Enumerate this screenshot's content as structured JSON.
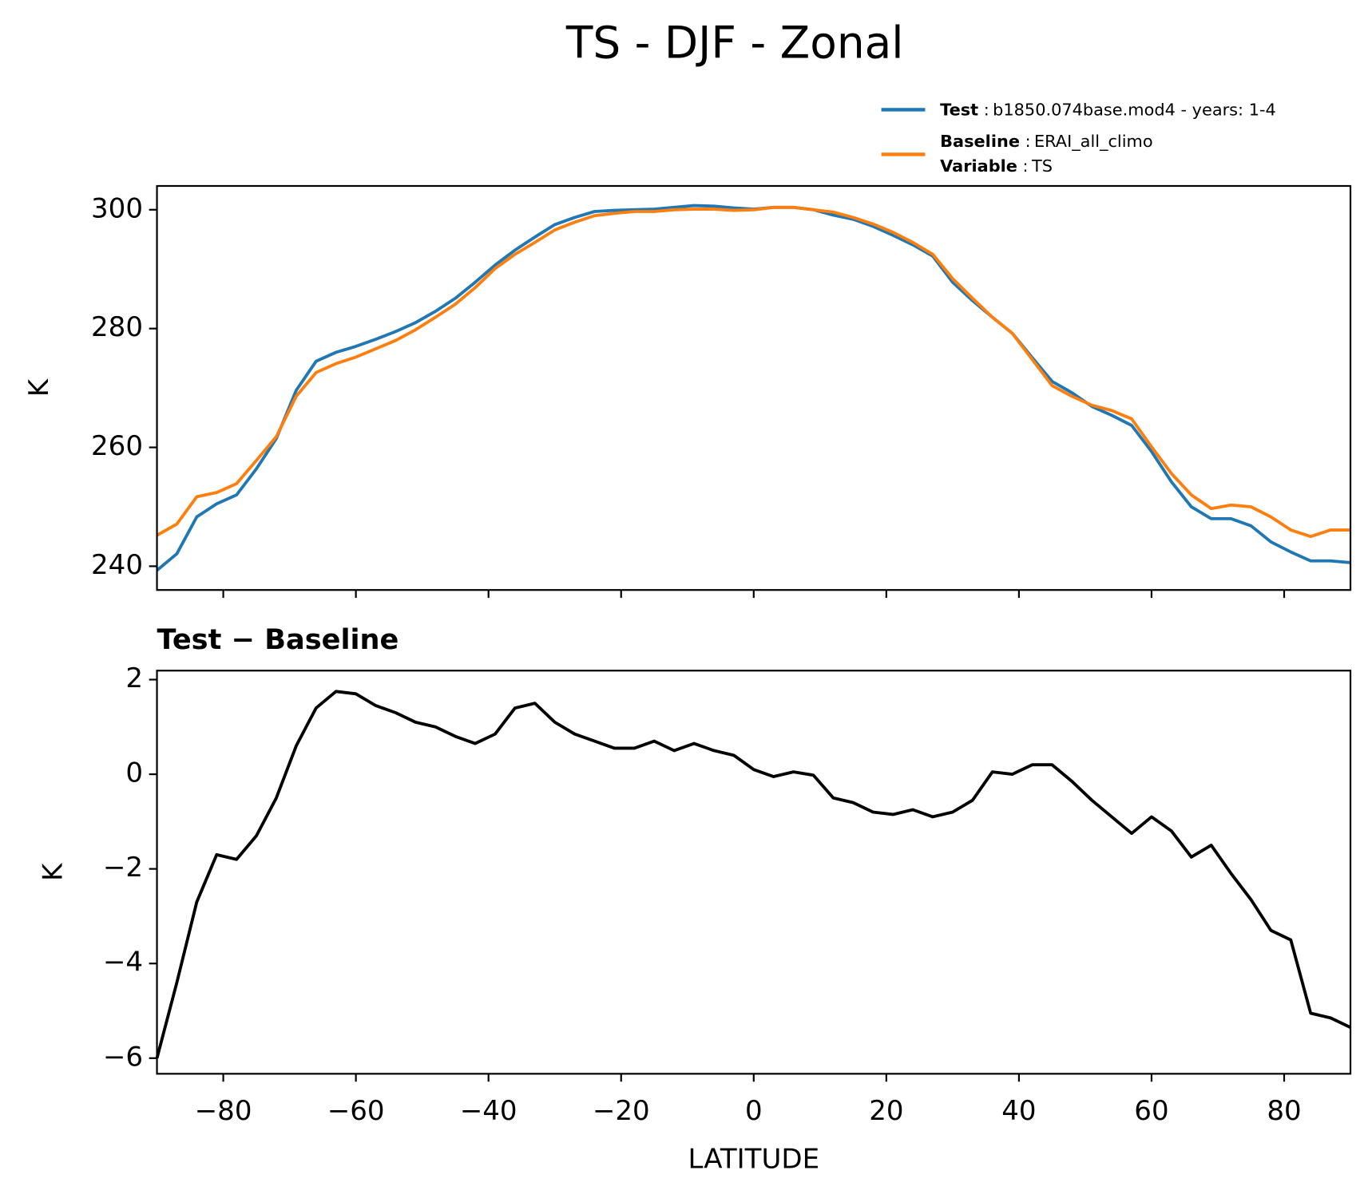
{
  "title": "TS - DJF - Zonal",
  "chart_data": [
    {
      "type": "line",
      "ylabel": "K",
      "x": [
        -90,
        -87,
        -84,
        -81,
        -78,
        -75,
        -72,
        -69,
        -66,
        -63,
        -60,
        -57,
        -54,
        -51,
        -48,
        -45,
        -42,
        -39,
        -36,
        -33,
        -30,
        -27,
        -24,
        -21,
        -18,
        -15,
        -12,
        -9,
        -6,
        -3,
        0,
        3,
        6,
        9,
        12,
        15,
        18,
        21,
        24,
        27,
        30,
        33,
        36,
        39,
        42,
        45,
        48,
        51,
        54,
        57,
        60,
        63,
        66,
        69,
        72,
        75,
        78,
        81,
        84,
        87,
        90
      ],
      "series": [
        {
          "name": "Test",
          "separator": ":",
          "description": "b1850.074base.mod4 - years: 1-4",
          "color": "#1f77b4",
          "values": [
            239.3,
            242.1,
            248.3,
            250.5,
            252.0,
            256.4,
            261.5,
            269.6,
            274.5,
            276.0,
            277.0,
            278.2,
            279.5,
            281.0,
            282.9,
            285.1,
            287.8,
            290.7,
            293.2,
            295.4,
            297.5,
            298.7,
            299.7,
            299.9,
            300.0,
            300.1,
            300.4,
            300.7,
            300.6,
            300.3,
            300.1,
            300.4,
            300.4,
            300.0,
            299.1,
            298.4,
            297.2,
            295.7,
            294.1,
            292.2,
            287.8,
            284.7,
            281.9,
            279.2,
            275.1,
            271.1,
            269.2,
            266.9,
            265.4,
            263.7,
            259.3,
            254.2,
            250.0,
            248.0,
            248.0,
            246.8,
            244.1,
            242.4,
            240.9,
            240.9,
            240.6
          ]
        },
        {
          "name": "Baseline",
          "separator": ":",
          "description": "ERAI_all_climo",
          "extra_name": "Variable",
          "extra_description": "TS",
          "color": "#ff7f0e",
          "values": [
            245.2,
            247.1,
            251.7,
            252.4,
            253.9,
            257.8,
            261.8,
            268.6,
            272.6,
            274.1,
            275.2,
            276.6,
            278.0,
            279.8,
            281.9,
            284.1,
            286.9,
            290.1,
            292.5,
            294.5,
            296.6,
            297.9,
            299.0,
            299.4,
            299.7,
            299.7,
            300.0,
            300.1,
            300.1,
            299.9,
            300.0,
            300.4,
            300.4,
            300.0,
            299.6,
            298.7,
            297.6,
            296.2,
            294.5,
            292.5,
            288.4,
            285.1,
            281.9,
            279.2,
            274.8,
            270.4,
            268.6,
            267.1,
            266.2,
            264.8,
            260.1,
            255.6,
            252.0,
            249.7,
            250.3,
            250.0,
            248.3,
            246.1,
            245.0,
            246.1,
            246.1
          ]
        }
      ],
      "xlim": [
        -90,
        90
      ],
      "xticks": [
        -80,
        -60,
        -40,
        -20,
        0,
        20,
        40,
        60,
        80
      ],
      "show_xticklabels": false,
      "ylim": [
        236,
        304
      ],
      "yticks": [
        240,
        260,
        280,
        300
      ]
    },
    {
      "type": "line",
      "title": "Test − Baseline",
      "ylabel": "K",
      "xlabel": "LATITUDE",
      "color": "#000000",
      "x": [
        -90,
        -87,
        -84,
        -81,
        -78,
        -75,
        -72,
        -69,
        -66,
        -63,
        -60,
        -57,
        -54,
        -51,
        -48,
        -45,
        -42,
        -39,
        -36,
        -33,
        -30,
        -27,
        -24,
        -21,
        -18,
        -15,
        -12,
        -9,
        -6,
        -3,
        0,
        3,
        6,
        9,
        12,
        15,
        18,
        21,
        24,
        27,
        30,
        33,
        36,
        39,
        42,
        45,
        48,
        51,
        54,
        57,
        60,
        63,
        66,
        69,
        72,
        75,
        78,
        81,
        84,
        87,
        90
      ],
      "values": [
        -6.0,
        -4.4,
        -2.7,
        -1.7,
        -1.8,
        -1.3,
        -0.5,
        0.6,
        1.4,
        1.75,
        1.7,
        1.45,
        1.3,
        1.1,
        1.0,
        0.8,
        0.65,
        0.85,
        1.4,
        1.5,
        1.1,
        0.85,
        0.7,
        0.55,
        0.55,
        0.7,
        0.5,
        0.65,
        0.5,
        0.4,
        0.1,
        -0.05,
        0.05,
        -0.02,
        -0.5,
        -0.6,
        -0.8,
        -0.85,
        -0.75,
        -0.9,
        -0.8,
        -0.55,
        0.05,
        0,
        0.2,
        0.2,
        -0.15,
        -0.55,
        -0.9,
        -1.25,
        -0.9,
        -1.2,
        -1.75,
        -1.5,
        -2.1,
        -2.65,
        -3.3,
        -3.5,
        -5.05,
        -5.15,
        -5.35
      ],
      "xlim": [
        -90,
        90
      ],
      "xticks": [
        {
          "value": -80,
          "label": "−80"
        },
        {
          "value": -60,
          "label": "−60"
        },
        {
          "value": -40,
          "label": "−40"
        },
        {
          "value": -20,
          "label": "−20"
        },
        0,
        20,
        40,
        60,
        80
      ],
      "show_xticklabels": true,
      "ylim": [
        -6.33,
        2.19
      ],
      "yticks": [
        {
          "value": -6,
          "label": "−6"
        },
        {
          "value": -4,
          "label": "−4"
        },
        {
          "value": -2,
          "label": "−2"
        },
        0,
        2
      ]
    }
  ]
}
